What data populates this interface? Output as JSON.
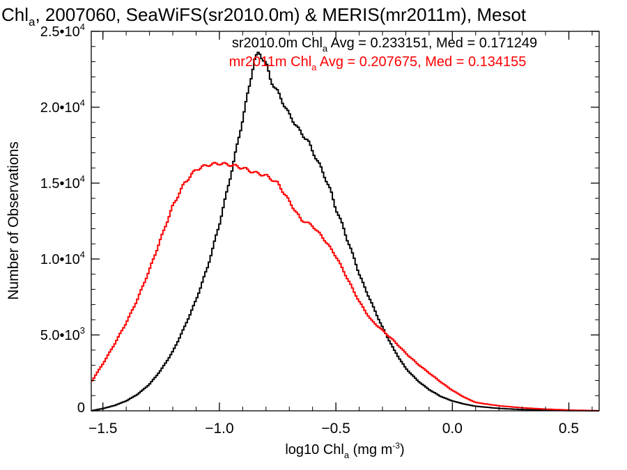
{
  "chart_data": {
    "type": "line",
    "step": true,
    "title": {
      "prefix": "Chl",
      "sub": "a",
      "suffix": ", 2007060, SeaWiFS(sr2010.0m) & MERIS(mr2011m), Mesot"
    },
    "xlabel": {
      "prefix": "log10 Chl",
      "sub": "a",
      "units_open": " (mg m",
      "sup": "-3",
      "units_close": ")"
    },
    "ylabel": "Number of Observations",
    "xlim": [
      -1.55,
      0.63
    ],
    "ylim": [
      0,
      25000
    ],
    "x_ticks": [
      {
        "value": -1.5,
        "label": "−1.5"
      },
      {
        "value": -1.0,
        "label": "−1.0"
      },
      {
        "value": -0.5,
        "label": "−0.5"
      },
      {
        "value": 0.0,
        "label": "0.0"
      },
      {
        "value": 0.5,
        "label": "0.5"
      }
    ],
    "y_ticks": [
      {
        "value": 0,
        "mant": "0",
        "exp": ""
      },
      {
        "value": 5000,
        "mant": "5.0•10",
        "exp": "3"
      },
      {
        "value": 10000,
        "mant": "1.0•10",
        "exp": "4"
      },
      {
        "value": 15000,
        "mant": "1.5•10",
        "exp": "4"
      },
      {
        "value": 20000,
        "mant": "2.0•10",
        "exp": "4"
      },
      {
        "value": 25000,
        "mant": "2.5•10",
        "exp": "4"
      }
    ],
    "grid": false,
    "legend_position": "top",
    "series": [
      {
        "name": "sr2010.0m",
        "color": "#000000",
        "legend": {
          "prefix": "sr2010.0m Chl",
          "sub": "a",
          "suffix": " Avg = 0.233151, Med = 0.171249"
        },
        "x": [
          -1.55,
          -1.5,
          -1.45,
          -1.4,
          -1.35,
          -1.3,
          -1.25,
          -1.2,
          -1.15,
          -1.1,
          -1.05,
          -1.0,
          -0.95,
          -0.9,
          -0.87,
          -0.85,
          -0.83,
          -0.8,
          -0.78,
          -0.75,
          -0.72,
          -0.7,
          -0.67,
          -0.65,
          -0.62,
          -0.6,
          -0.57,
          -0.55,
          -0.52,
          -0.5,
          -0.47,
          -0.45,
          -0.42,
          -0.4,
          -0.35,
          -0.3,
          -0.25,
          -0.2,
          -0.15,
          -0.1,
          -0.05,
          0.0,
          0.05,
          0.1,
          0.2,
          0.3,
          0.4,
          0.5,
          0.6,
          0.63
        ],
        "y": [
          0,
          150,
          350,
          650,
          1100,
          1750,
          2700,
          3900,
          5500,
          7300,
          9500,
          12300,
          15600,
          19200,
          21500,
          23100,
          23600,
          22900,
          21800,
          21000,
          20100,
          19500,
          18800,
          18300,
          17800,
          17100,
          16200,
          15500,
          14400,
          13300,
          12200,
          11200,
          10000,
          9000,
          7200,
          5500,
          4000,
          2800,
          2000,
          1400,
          950,
          650,
          450,
          300,
          160,
          80,
          40,
          15,
          5,
          0
        ]
      },
      {
        "name": "mr2011m",
        "color": "#ff0000",
        "legend": {
          "prefix": "mr2011m Chl",
          "sub": "a",
          "suffix": " Avg = 0.207675, Med = 0.134155"
        },
        "x": [
          -1.55,
          -1.5,
          -1.45,
          -1.4,
          -1.35,
          -1.3,
          -1.25,
          -1.2,
          -1.15,
          -1.1,
          -1.05,
          -1.0,
          -0.95,
          -0.9,
          -0.85,
          -0.8,
          -0.75,
          -0.7,
          -0.65,
          -0.6,
          -0.55,
          -0.5,
          -0.45,
          -0.4,
          -0.35,
          -0.3,
          -0.25,
          -0.2,
          -0.15,
          -0.1,
          -0.05,
          0.0,
          0.05,
          0.1,
          0.2,
          0.3,
          0.4,
          0.5,
          0.6,
          0.63
        ],
        "y": [
          1900,
          3100,
          4400,
          5800,
          7400,
          9300,
          11400,
          13500,
          15000,
          15900,
          16200,
          16300,
          16200,
          16000,
          15700,
          15500,
          15000,
          13800,
          12600,
          12200,
          11300,
          10200,
          8700,
          7200,
          6000,
          5300,
          4600,
          3800,
          3100,
          2500,
          1900,
          1350,
          900,
          550,
          330,
          200,
          110,
          50,
          15,
          0
        ]
      }
    ]
  }
}
